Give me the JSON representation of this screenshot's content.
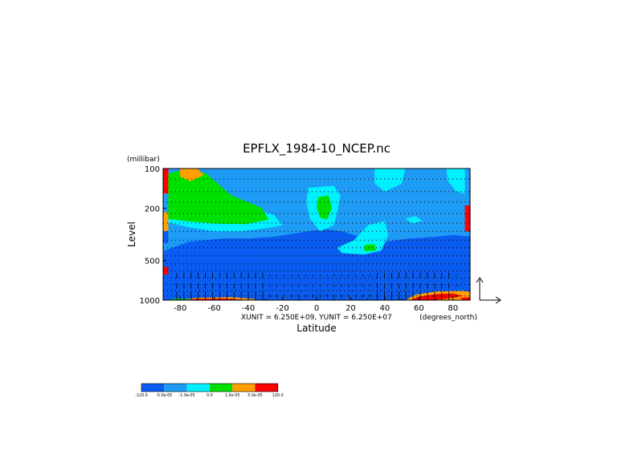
{
  "chart_data": {
    "type": "heatmap",
    "title": "EPFLX_1984-10_NCEP.nc",
    "xlabel": "Latitude",
    "x_units": "(degrees_north)",
    "ylabel": "Level",
    "y_units": "(millibar)",
    "vector_units": "XUNIT = 6.250E+09, YUNIT = 6.250E+07",
    "xlim": [
      -90,
      90
    ],
    "ylim": [
      1000,
      100
    ],
    "y_scale": "log",
    "x_ticks": [
      -80,
      -60,
      -40,
      -20,
      0,
      20,
      40,
      60,
      80
    ],
    "y_ticks": [
      100,
      200,
      500,
      1000
    ],
    "colorbar": {
      "labels": [
        "-120.0",
        "-5.0e-05",
        "-1.0e-05",
        "0.0",
        "1.0e-05",
        "5.0e-05",
        "120.0"
      ],
      "colors": [
        "#0a5cf0",
        "#1e9bf5",
        "#00f0ff",
        "#00e000",
        "#ffa000",
        "#ff0000"
      ]
    },
    "regions": [
      {
        "level": 1,
        "points": [
          [
            -91,
            1000
          ],
          [
            91,
            1000
          ],
          [
            91,
            100
          ],
          [
            -91,
            100
          ]
        ]
      },
      {
        "level": 0,
        "points": [
          [
            -91,
            430
          ],
          [
            -75,
            360
          ],
          [
            -55,
            340
          ],
          [
            -40,
            340
          ],
          [
            -25,
            330
          ],
          [
            -12,
            310
          ],
          [
            -5,
            300
          ],
          [
            5,
            290
          ],
          [
            15,
            300
          ],
          [
            22,
            320
          ],
          [
            30,
            350
          ],
          [
            40,
            360
          ],
          [
            55,
            340
          ],
          [
            70,
            330
          ],
          [
            80,
            320
          ],
          [
            91,
            330
          ],
          [
            91,
            1000
          ],
          [
            -91,
            1000
          ]
        ]
      },
      {
        "level": 2,
        "points": [
          [
            -91,
            120
          ],
          [
            -80,
            112
          ],
          [
            -70,
            118
          ],
          [
            -62,
            140
          ],
          [
            -55,
            165
          ],
          [
            -45,
            180
          ],
          [
            -35,
            205
          ],
          [
            -25,
            225
          ],
          [
            -20,
            270
          ],
          [
            -30,
            285
          ],
          [
            -45,
            300
          ],
          [
            -60,
            300
          ],
          [
            -75,
            280
          ],
          [
            -85,
            260
          ],
          [
            -91,
            250
          ]
        ]
      },
      {
        "level": 3,
        "points": [
          [
            -88,
            110
          ],
          [
            -78,
            102
          ],
          [
            -65,
            108
          ],
          [
            -58,
            130
          ],
          [
            -50,
            160
          ],
          [
            -40,
            180
          ],
          [
            -32,
            200
          ],
          [
            -28,
            245
          ],
          [
            -42,
            265
          ],
          [
            -60,
            262
          ],
          [
            -78,
            250
          ],
          [
            -88,
            240
          ]
        ]
      },
      {
        "level": 4,
        "points": [
          [
            -80,
            100
          ],
          [
            -70,
            100
          ],
          [
            -66,
            112
          ],
          [
            -74,
            125
          ],
          [
            -80,
            115
          ]
        ]
      },
      {
        "level": 2,
        "points": [
          [
            -5,
            140
          ],
          [
            10,
            135
          ],
          [
            14,
            160
          ],
          [
            12,
            220
          ],
          [
            10,
            270
          ],
          [
            2,
            300
          ],
          [
            -4,
            240
          ],
          [
            -6,
            180
          ]
        ]
      },
      {
        "level": 3,
        "points": [
          [
            1,
            165
          ],
          [
            7,
            160
          ],
          [
            9,
            200
          ],
          [
            6,
            245
          ],
          [
            2,
            235
          ],
          [
            0,
            195
          ]
        ]
      },
      {
        "level": 2,
        "points": [
          [
            30,
            270
          ],
          [
            40,
            250
          ],
          [
            42,
            320
          ],
          [
            38,
            420
          ],
          [
            28,
            450
          ],
          [
            15,
            440
          ],
          [
            12,
            400
          ],
          [
            22,
            350
          ]
        ]
      },
      {
        "level": 3,
        "points": [
          [
            28,
            380
          ],
          [
            34,
            375
          ],
          [
            35,
            420
          ],
          [
            28,
            425
          ]
        ]
      },
      {
        "level": 2,
        "points": [
          [
            34,
            100
          ],
          [
            52,
            100
          ],
          [
            50,
            130
          ],
          [
            40,
            150
          ],
          [
            34,
            130
          ]
        ]
      },
      {
        "level": 2,
        "points": [
          [
            76,
            100
          ],
          [
            91,
            100
          ],
          [
            91,
            160
          ],
          [
            82,
            150
          ],
          [
            77,
            125
          ]
        ]
      },
      {
        "level": 2,
        "points": [
          [
            52,
            240
          ],
          [
            58,
            230
          ],
          [
            62,
            250
          ],
          [
            56,
            262
          ]
        ]
      },
      {
        "level": 0,
        "points": [
          [
            -91,
            520
          ],
          [
            -80,
            440
          ],
          [
            -60,
            400
          ],
          [
            -40,
            430
          ],
          [
            -30,
            500
          ],
          [
            -20,
            520
          ],
          [
            -10,
            600
          ],
          [
            -22,
            700
          ],
          [
            -40,
            760
          ],
          [
            -60,
            770
          ],
          [
            -80,
            740
          ],
          [
            -91,
            700
          ]
        ]
      },
      {
        "level": 0,
        "points": [
          [
            45,
            420
          ],
          [
            60,
            400
          ],
          [
            75,
            430
          ],
          [
            80,
            560
          ],
          [
            70,
            640
          ],
          [
            55,
            650
          ],
          [
            45,
            580
          ]
        ]
      },
      {
        "level": 0,
        "points": [
          [
            5,
            940
          ],
          [
            40,
            920
          ],
          [
            62,
            870
          ],
          [
            72,
            900
          ],
          [
            66,
            980
          ],
          [
            40,
            1000
          ],
          [
            5,
            1000
          ]
        ]
      },
      {
        "level": 4,
        "points": [
          [
            -82,
            1000
          ],
          [
            -70,
            960
          ],
          [
            -50,
            950
          ],
          [
            -36,
            980
          ],
          [
            -36,
            1000
          ]
        ]
      },
      {
        "level": 5,
        "points": [
          [
            -78,
            1000
          ],
          [
            -70,
            978
          ],
          [
            -54,
            972
          ],
          [
            -44,
            990
          ],
          [
            -44,
            1000
          ]
        ]
      },
      {
        "level": 4,
        "points": [
          [
            52,
            1000
          ],
          [
            58,
            910
          ],
          [
            70,
            860
          ],
          [
            86,
            850
          ],
          [
            91,
            870
          ],
          [
            91,
            1000
          ]
        ]
      },
      {
        "level": 5,
        "points": [
          [
            55,
            1000
          ],
          [
            60,
            940
          ],
          [
            70,
            900
          ],
          [
            80,
            890
          ],
          [
            86,
            930
          ],
          [
            76,
            975
          ],
          [
            66,
            1000
          ]
        ]
      },
      {
        "level": 5,
        "points": [
          [
            84,
            960
          ],
          [
            91,
            950
          ],
          [
            91,
            1000
          ],
          [
            86,
            1000
          ]
        ]
      },
      {
        "level": 5,
        "points": [
          [
            -91,
            100
          ],
          [
            -87,
            100
          ],
          [
            -87,
            155
          ],
          [
            -91,
            155
          ]
        ]
      },
      {
        "level": 5,
        "points": [
          [
            -91,
            560
          ],
          [
            -87,
            560
          ],
          [
            -87,
            640
          ],
          [
            -91,
            640
          ]
        ]
      },
      {
        "level": 4,
        "points": [
          [
            -91,
            215
          ],
          [
            -87,
            215
          ],
          [
            -87,
            300
          ],
          [
            -91,
            300
          ]
        ]
      },
      {
        "level": 1,
        "points": [
          [
            -91,
            155
          ],
          [
            -87,
            155
          ],
          [
            -87,
            215
          ],
          [
            -91,
            215
          ]
        ]
      },
      {
        "level": 0,
        "points": [
          [
            -91,
            300
          ],
          [
            -87,
            300
          ],
          [
            -87,
            370
          ],
          [
            -91,
            370
          ]
        ]
      },
      {
        "level": 5,
        "points": [
          [
            87,
            190
          ],
          [
            91,
            190
          ],
          [
            91,
            300
          ],
          [
            87,
            300
          ]
        ]
      },
      {
        "level": 1,
        "points": [
          [
            87,
            100
          ],
          [
            91,
            100
          ],
          [
            91,
            190
          ],
          [
            87,
            190
          ]
        ]
      },
      {
        "level": 3,
        "points": [
          [
            -86,
            990
          ],
          [
            -80,
            970
          ],
          [
            -74,
            990
          ],
          [
            -76,
            1000
          ],
          [
            -86,
            1000
          ]
        ]
      }
    ]
  }
}
